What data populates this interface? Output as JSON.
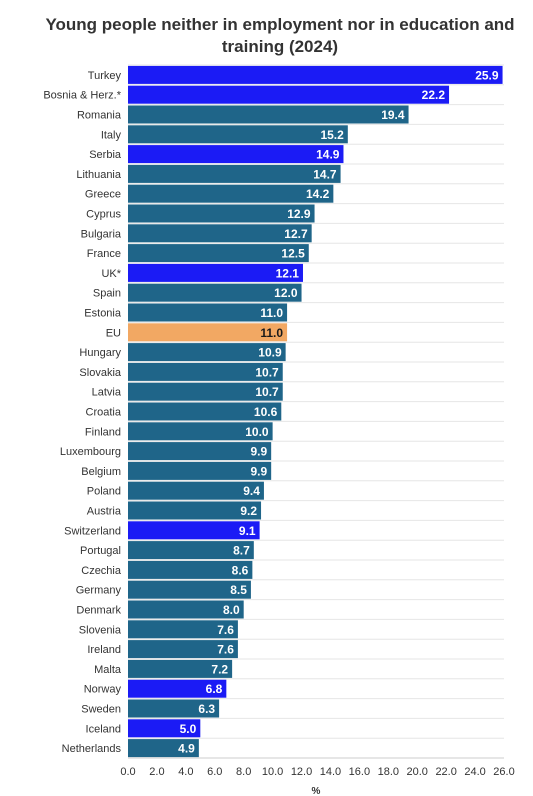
{
  "chart_data": {
    "type": "bar",
    "orientation": "horizontal",
    "title": "Young people neither in employment nor in education and training (2024)",
    "xlabel": "%",
    "xlim": [
      0,
      26
    ],
    "xticks": [
      "0.0",
      "2.0",
      "4.0",
      "6.0",
      "8.0",
      "10.0",
      "12.0",
      "14.0",
      "16.0",
      "18.0",
      "20.0",
      "22.0",
      "24.0",
      "26.0"
    ],
    "grid": true,
    "categories": [
      "Turkey",
      "Bosnia & Herz.*",
      "Romania",
      "Italy",
      "Serbia",
      "Lithuania",
      "Greece",
      "Cyprus",
      "Bulgaria",
      "France",
      "UK*",
      "Spain",
      "Estonia",
      "EU",
      "Hungary",
      "Slovakia",
      "Latvia",
      "Croatia",
      "Finland",
      "Luxembourg",
      "Belgium",
      "Poland",
      "Austria",
      "Switzerland",
      "Portugal",
      "Czechia",
      "Germany",
      "Denmark",
      "Slovenia",
      "Ireland",
      "Malta",
      "Norway",
      "Sweden",
      "Iceland",
      "Netherlands"
    ],
    "values": [
      25.9,
      22.2,
      19.4,
      15.2,
      14.9,
      14.7,
      14.2,
      12.9,
      12.7,
      12.5,
      12.1,
      12.0,
      11.0,
      11.0,
      10.9,
      10.7,
      10.7,
      10.6,
      10.0,
      9.9,
      9.9,
      9.4,
      9.2,
      9.1,
      8.7,
      8.6,
      8.5,
      8.0,
      7.6,
      7.6,
      7.2,
      6.8,
      6.3,
      5.0,
      4.9
    ],
    "groups": [
      "non-eu",
      "non-eu",
      "eu-member",
      "eu-member",
      "non-eu",
      "eu-member",
      "eu-member",
      "eu-member",
      "eu-member",
      "eu-member",
      "non-eu",
      "eu-member",
      "eu-member",
      "eu-average",
      "eu-member",
      "eu-member",
      "eu-member",
      "eu-member",
      "eu-member",
      "eu-member",
      "eu-member",
      "eu-member",
      "eu-member",
      "non-eu",
      "eu-member",
      "eu-member",
      "eu-member",
      "eu-member",
      "eu-member",
      "eu-member",
      "eu-member",
      "non-eu",
      "eu-member",
      "non-eu",
      "eu-member"
    ],
    "colors": {
      "eu-member": "#1f6589",
      "non-eu": "#1b1bf5",
      "eu-average": "#f2a863",
      "value-label-light": "#ffffff",
      "value-label-dark": "#1a1a1a",
      "grid": "#e6e6e6"
    }
  }
}
